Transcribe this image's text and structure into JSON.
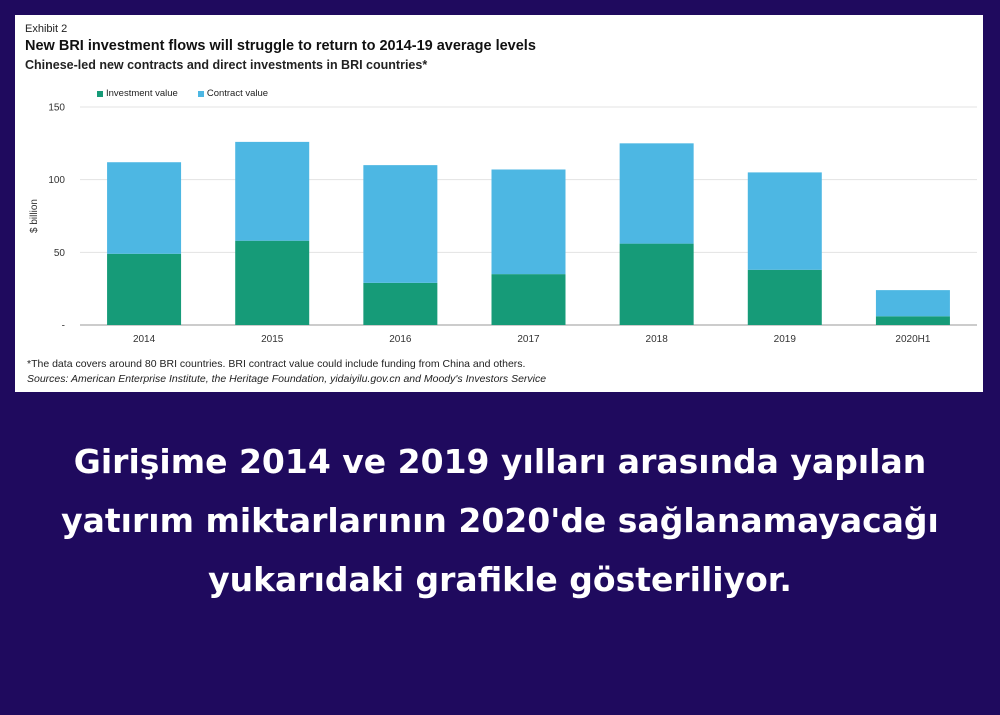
{
  "exhibit_label": "Exhibit 2",
  "colors": {
    "investment": "#169b78",
    "contract": "#4db7e3",
    "background": "#1f0a5e"
  },
  "chart_data": {
    "type": "bar",
    "stacked": true,
    "title": "New BRI investment flows will struggle to return to 2014-19 average levels",
    "subtitle": "Chinese-led new contracts and direct investments in BRI countries*",
    "xlabel": "",
    "ylabel": "$ billion",
    "ylim": [
      0,
      150
    ],
    "yticks": [
      0,
      50,
      100,
      150
    ],
    "ytick_labels": [
      "-",
      "50",
      "100",
      "150"
    ],
    "grid": true,
    "legend_position": "top-left",
    "categories": [
      "2014",
      "2015",
      "2016",
      "2017",
      "2018",
      "2019",
      "2020H1"
    ],
    "series": [
      {
        "name": "Investment value",
        "values": [
          49,
          58,
          29,
          35,
          56,
          38,
          6
        ]
      },
      {
        "name": "Contract value",
        "values": [
          63,
          68,
          81,
          72,
          69,
          67,
          18
        ]
      }
    ]
  },
  "note": "*The data covers around 80 BRI countries. BRI contract value could include funding from China and others.",
  "sources": "Sources: American Enterprise Institute, the Heritage Foundation, yidaiyilu.gov.cn and Moody's Investors Service",
  "caption": "Girişime 2014 ve 2019 yılları arasında yapılan yatırım miktarlarının 2020'de sağlanamayacağı yukarıdaki grafikle gösteriliyor."
}
